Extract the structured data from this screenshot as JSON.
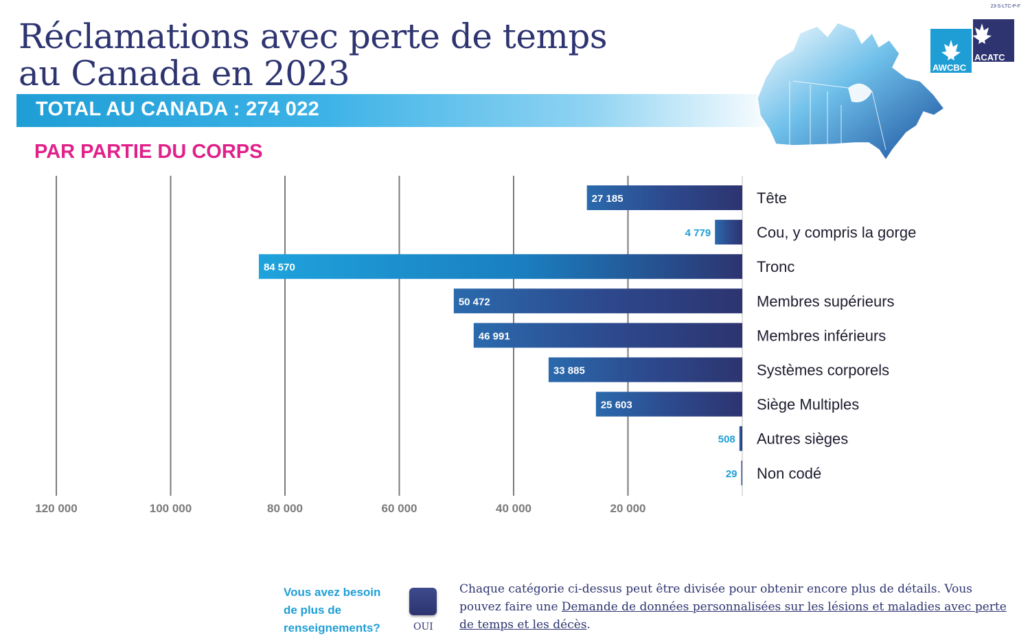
{
  "doc_code": "23-S-LTC-P-F",
  "title_line1": "Réclamations avec perte de temps",
  "title_line2": "au Canada en 2023",
  "total_label": "TOTAL AU CANADA : 274 022",
  "section_label": "PAR PARTIE DU CORPS",
  "logo": {
    "left": "AWCBC",
    "right": "ACATC"
  },
  "colors": {
    "navy": "#2d3470",
    "cyan": "#1f9ed6",
    "magenta": "#e0218a",
    "axis_text": "#7a7a7a"
  },
  "chart_data": {
    "type": "bar",
    "orientation": "horizontal",
    "direction": "right-to-left",
    "categories": [
      "Tête",
      "Cou, y compris la gorge",
      "Tronc",
      "Membres supérieurs",
      "Membres inférieurs",
      "Systèmes corporels",
      "Siège Multiples",
      "Autres sièges",
      "Non codé"
    ],
    "values": [
      27185,
      4779,
      84570,
      50472,
      46991,
      33885,
      25603,
      508,
      29
    ],
    "value_labels": [
      "27 185",
      "4 779",
      "84 570",
      "50 472",
      "46 991",
      "33 885",
      "25 603",
      "508",
      "29"
    ],
    "highlight_index": 2,
    "xlim": [
      0,
      120000
    ],
    "ticks": [
      120000,
      100000,
      80000,
      60000,
      40000,
      20000
    ],
    "tick_labels": [
      "120 000",
      "100 000",
      "80 000",
      "60 000",
      "40 000",
      "20 000"
    ],
    "grid": true,
    "title": "PAR PARTIE DU CORPS"
  },
  "footer": {
    "question": "Vous avez besoin de plus de renseignements?",
    "button_label": "OUI",
    "text_before": "Chaque catégorie ci-dessus peut être divisée pour obtenir encore plus de détails. Vous pouvez faire une ",
    "link_text": "Demande de données personnalisées sur les lésions et maladies avec perte de temps et les décès",
    "text_after": "."
  }
}
